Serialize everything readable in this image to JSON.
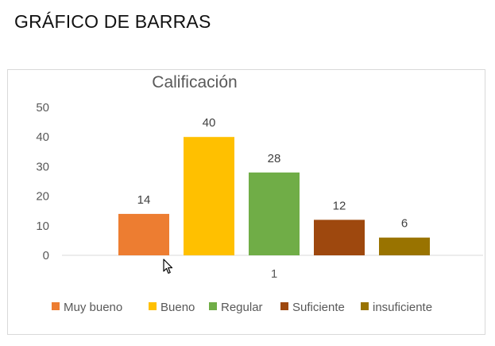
{
  "page": {
    "heading": "GRÁFICO DE BARRAS"
  },
  "colors": {
    "muy_bueno": "#ED7D31",
    "bueno": "#FFC000",
    "regular": "#70AD47",
    "suficiente": "#9E480E",
    "insuficiente": "#997300",
    "axis_text": "#595959",
    "axis_line": "#d9d9d9"
  },
  "chart_data": {
    "type": "bar",
    "title": "Calificación",
    "categories": [
      "1"
    ],
    "ylim": [
      0,
      50
    ],
    "yticks": [
      0,
      10,
      20,
      30,
      40,
      50
    ],
    "grid": false,
    "legend_position": "bottom",
    "series": [
      {
        "name": "Muy bueno",
        "values": [
          14
        ],
        "color": "#ED7D31"
      },
      {
        "name": "Bueno",
        "values": [
          40
        ],
        "color": "#FFC000"
      },
      {
        "name": "Regular",
        "values": [
          28
        ],
        "color": "#70AD47"
      },
      {
        "name": "Suficiente",
        "values": [
          12
        ],
        "color": "#9E480E"
      },
      {
        "name": "insuficiente",
        "values": [
          6
        ],
        "color": "#997300"
      }
    ]
  }
}
